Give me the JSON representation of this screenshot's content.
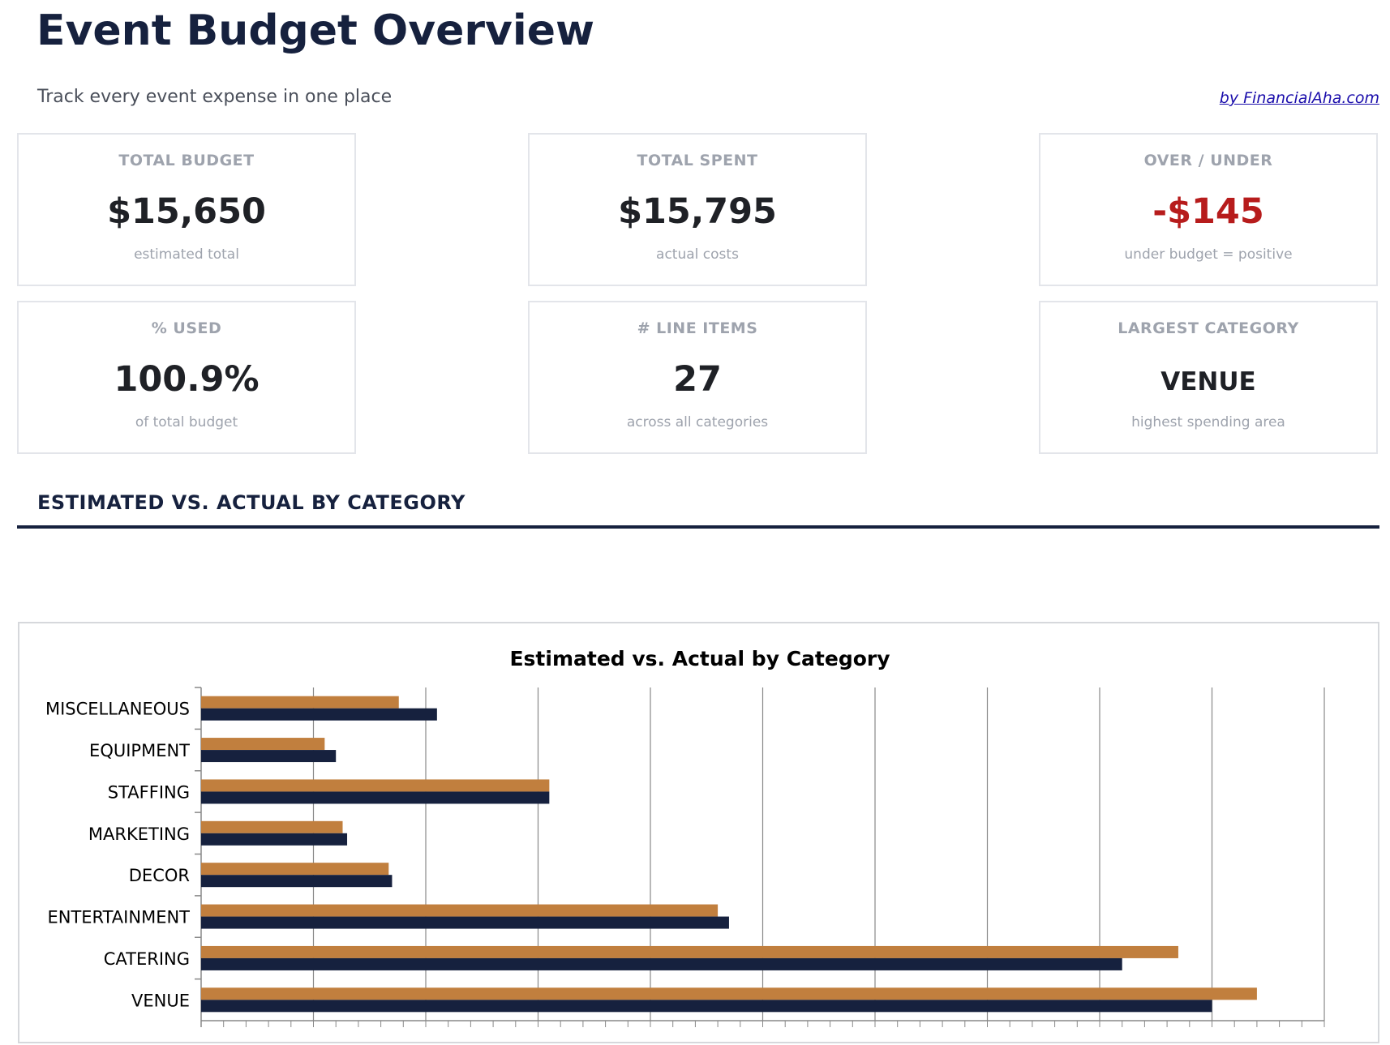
{
  "header": {
    "title": "Event Budget Overview",
    "subtitle": "Track every event expense in one place",
    "credit": "by FinancialAha.com"
  },
  "cards": [
    {
      "label": "TOTAL BUDGET",
      "value": "$15,650",
      "sub": "estimated total"
    },
    {
      "label": "TOTAL SPENT",
      "value": "$15,795",
      "sub": "actual costs"
    },
    {
      "label": "OVER / UNDER",
      "value": "-$145",
      "sub": "under budget = positive",
      "color": "#b71c1c"
    },
    {
      "label": "% USED",
      "value": "100.9%",
      "sub": "of total budget"
    },
    {
      "label": "# LINE ITEMS",
      "value": "27",
      "sub": "across all categories"
    },
    {
      "label": "LARGEST CATEGORY",
      "value": "VENUE",
      "sub": "highest spending area"
    }
  ],
  "section_heading": "ESTIMATED VS. ACTUAL BY CATEGORY",
  "chart_data": {
    "type": "bar",
    "orientation": "horizontal",
    "title": "Estimated vs. Actual by Category",
    "categories": [
      "MISCELLANEOUS",
      "EQUIPMENT",
      "STAFFING",
      "MARKETING",
      "DECOR",
      "ENTERTAINMENT",
      "CATERING",
      "VENUE"
    ],
    "series": [
      {
        "values": [
          880,
          550,
          1550,
          630,
          835,
          2300,
          4350,
          4700
        ],
        "color": "#c17f3e"
      },
      {
        "values": [
          1050,
          600,
          1550,
          650,
          850,
          2350,
          4100,
          4500
        ],
        "color": "#16213e"
      }
    ],
    "xlim": [
      0,
      5000
    ],
    "major_step": 500,
    "grid": true,
    "legend": "none"
  }
}
